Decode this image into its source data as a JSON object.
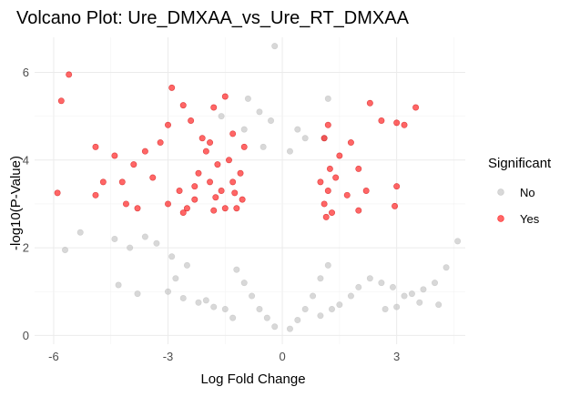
{
  "chart_data": {
    "type": "scatter",
    "title": "Volcano Plot: Ure_DMXAA_vs_Ure_RT_DMXAA",
    "xlabel": "Log Fold Change",
    "ylabel": "-log10(P-Value)",
    "xlim": [
      -6.5,
      4.8
    ],
    "ylim": [
      -0.2,
      6.8
    ],
    "x_ticks": [
      -6,
      -3,
      0,
      3
    ],
    "y_ticks": [
      0,
      2,
      4,
      6
    ],
    "x_tick_labels": [
      "-6",
      "-3",
      "0",
      "3"
    ],
    "y_tick_labels": [
      "0",
      "2",
      "4",
      "6"
    ],
    "grid": true,
    "legend": {
      "title": "Significant",
      "placement": "right",
      "entries": [
        {
          "label": "No",
          "color": "#bebebe"
        },
        {
          "label": "Yes",
          "color": "#ff0000"
        }
      ]
    },
    "series": [
      {
        "name": "No",
        "color": "#bebebe",
        "points": [
          [
            -0.2,
            6.6
          ],
          [
            -0.9,
            5.4
          ],
          [
            -0.6,
            5.1
          ],
          [
            -1.6,
            5.0
          ],
          [
            1.2,
            5.4
          ],
          [
            -0.3,
            4.9
          ],
          [
            0.4,
            4.7
          ],
          [
            -1.0,
            4.7
          ],
          [
            0.6,
            4.5
          ],
          [
            1.1,
            4.5
          ],
          [
            -0.5,
            4.3
          ],
          [
            0.2,
            4.2
          ],
          [
            -5.7,
            1.95
          ],
          [
            -5.3,
            2.35
          ],
          [
            -4.4,
            2.2
          ],
          [
            -4.0,
            2.0
          ],
          [
            -3.6,
            2.25
          ],
          [
            -3.3,
            2.1
          ],
          [
            -2.9,
            1.8
          ],
          [
            -2.5,
            1.6
          ],
          [
            -2.8,
            1.3
          ],
          [
            -3.0,
            1.0
          ],
          [
            -2.6,
            0.85
          ],
          [
            -2.2,
            0.75
          ],
          [
            -4.3,
            1.15
          ],
          [
            -3.8,
            0.95
          ],
          [
            -1.8,
            0.65
          ],
          [
            -1.5,
            0.6
          ],
          [
            -2.0,
            0.8
          ],
          [
            -1.3,
            0.4
          ],
          [
            4.6,
            2.15
          ],
          [
            4.3,
            1.55
          ],
          [
            4.0,
            1.2
          ],
          [
            3.7,
            1.05
          ],
          [
            3.4,
            0.95
          ],
          [
            3.2,
            0.9
          ],
          [
            2.9,
            1.1
          ],
          [
            2.6,
            1.2
          ],
          [
            2.3,
            1.3
          ],
          [
            2.0,
            1.1
          ],
          [
            1.8,
            0.9
          ],
          [
            1.5,
            0.7
          ],
          [
            1.3,
            0.6
          ],
          [
            1.0,
            0.45
          ],
          [
            3.0,
            0.65
          ],
          [
            2.7,
            0.6
          ],
          [
            3.6,
            0.75
          ],
          [
            4.1,
            0.7
          ],
          [
            -1.2,
            1.5
          ],
          [
            -1.0,
            1.2
          ],
          [
            -0.8,
            0.9
          ],
          [
            -0.6,
            0.6
          ],
          [
            -0.4,
            0.4
          ],
          [
            -0.2,
            0.2
          ],
          [
            0.2,
            0.15
          ],
          [
            0.4,
            0.35
          ],
          [
            0.6,
            0.6
          ],
          [
            0.8,
            0.9
          ],
          [
            1.0,
            1.3
          ],
          [
            1.2,
            1.6
          ]
        ]
      },
      {
        "name": "Yes",
        "color": "#ff0000",
        "points": [
          [
            -5.6,
            5.95
          ],
          [
            -5.8,
            5.35
          ],
          [
            -5.9,
            3.25
          ],
          [
            -4.9,
            4.3
          ],
          [
            -4.7,
            3.5
          ],
          [
            -4.9,
            3.2
          ],
          [
            -4.4,
            4.1
          ],
          [
            -4.1,
            3.0
          ],
          [
            -3.9,
            3.9
          ],
          [
            -3.6,
            4.2
          ],
          [
            -3.4,
            3.6
          ],
          [
            -3.2,
            4.4
          ],
          [
            -3.0,
            3.0
          ],
          [
            -2.9,
            5.65
          ],
          [
            -2.6,
            5.25
          ],
          [
            -2.4,
            4.9
          ],
          [
            -2.1,
            4.5
          ],
          [
            -1.8,
            5.2
          ],
          [
            -1.5,
            5.45
          ],
          [
            -1.3,
            4.6
          ],
          [
            -3.0,
            4.8
          ],
          [
            -2.7,
            3.3
          ],
          [
            -2.5,
            2.9
          ],
          [
            -2.3,
            3.1
          ],
          [
            -2.2,
            3.7
          ],
          [
            -2.0,
            4.2
          ],
          [
            -1.9,
            3.5
          ],
          [
            -1.8,
            2.85
          ],
          [
            -1.7,
            3.9
          ],
          [
            -1.6,
            3.3
          ],
          [
            -1.5,
            2.9
          ],
          [
            -1.4,
            4.0
          ],
          [
            -1.3,
            3.5
          ],
          [
            -1.2,
            2.9
          ],
          [
            -1.1,
            3.7
          ],
          [
            -1.0,
            4.3
          ],
          [
            -1.05,
            3.1
          ],
          [
            -1.9,
            4.4
          ],
          [
            -2.3,
            3.4
          ],
          [
            -2.6,
            2.8
          ],
          [
            -1.75,
            3.15
          ],
          [
            -1.25,
            3.25
          ],
          [
            1.0,
            3.5
          ],
          [
            1.1,
            3.0
          ],
          [
            1.2,
            3.3
          ],
          [
            1.3,
            2.8
          ],
          [
            1.4,
            3.6
          ],
          [
            1.1,
            4.5
          ],
          [
            1.2,
            4.8
          ],
          [
            1.5,
            4.1
          ],
          [
            1.7,
            3.2
          ],
          [
            1.8,
            4.4
          ],
          [
            2.0,
            3.8
          ],
          [
            2.2,
            3.3
          ],
          [
            2.3,
            5.3
          ],
          [
            2.6,
            4.9
          ],
          [
            3.0,
            4.85
          ],
          [
            3.2,
            4.8
          ],
          [
            3.5,
            5.2
          ],
          [
            3.0,
            3.4
          ],
          [
            2.95,
            2.95
          ],
          [
            2.0,
            2.85
          ],
          [
            1.15,
            2.7
          ],
          [
            1.25,
            3.8
          ],
          [
            -3.8,
            2.9
          ],
          [
            -4.2,
            3.5
          ]
        ]
      }
    ]
  }
}
